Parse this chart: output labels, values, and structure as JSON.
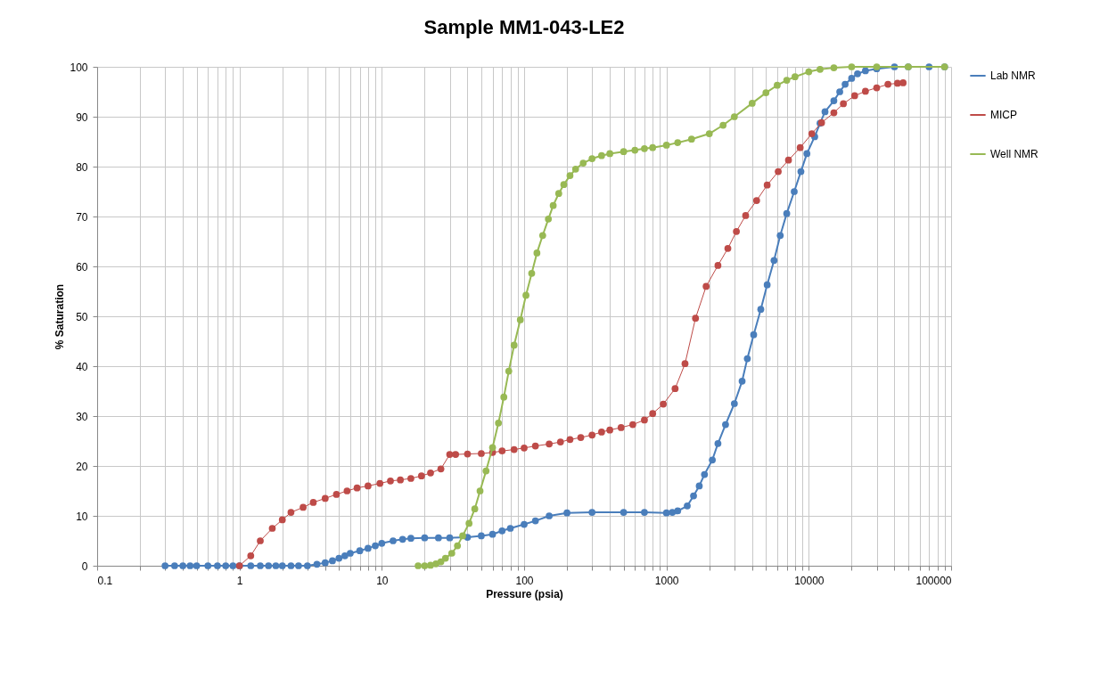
{
  "chart_data": {
    "type": "line",
    "title": "Sample MM1-043-LE2",
    "xlabel": "Pressure (psia)",
    "ylabel": "% Saturation",
    "log": "x",
    "grid": true,
    "legend": "right",
    "marker": "circle",
    "line_style": "solid",
    "xlim": [
      0.1,
      100000
    ],
    "ylim": [
      0,
      100
    ],
    "xticks": [
      0.1,
      {
        "value": 0.2,
        "label": null
      },
      {
        "value": 0.3,
        "label": null
      },
      {
        "value": 0.4,
        "label": null
      },
      {
        "value": 0.5,
        "label": null
      },
      {
        "value": 0.6,
        "label": null
      },
      {
        "value": 0.7,
        "label": null
      },
      {
        "value": 0.8,
        "label": null
      },
      {
        "value": 0.9,
        "label": null
      },
      1,
      {
        "value": 2,
        "label": null
      },
      {
        "value": 3,
        "label": null
      },
      {
        "value": 4,
        "label": null
      },
      {
        "value": 5,
        "label": null
      },
      {
        "value": 6,
        "label": null
      },
      {
        "value": 7,
        "label": null
      },
      {
        "value": 8,
        "label": null
      },
      {
        "value": 9,
        "label": null
      },
      10,
      {
        "value": 20,
        "label": null
      },
      {
        "value": 30,
        "label": null
      },
      {
        "value": 40,
        "label": null
      },
      {
        "value": 50,
        "label": null
      },
      {
        "value": 60,
        "label": null
      },
      {
        "value": 70,
        "label": null
      },
      {
        "value": 80,
        "label": null
      },
      {
        "value": 90,
        "label": null
      },
      100,
      {
        "value": 200,
        "label": null
      },
      {
        "value": 300,
        "label": null
      },
      {
        "value": 400,
        "label": null
      },
      {
        "value": 500,
        "label": null
      },
      {
        "value": 600,
        "label": null
      },
      {
        "value": 700,
        "label": null
      },
      {
        "value": 800,
        "label": null
      },
      {
        "value": 900,
        "label": null
      },
      1000,
      {
        "value": 2000,
        "label": null
      },
      {
        "value": 3000,
        "label": null
      },
      {
        "value": 4000,
        "label": null
      },
      {
        "value": 5000,
        "label": null
      },
      {
        "value": 6000,
        "label": null
      },
      {
        "value": 7000,
        "label": null
      },
      {
        "value": 8000,
        "label": null
      },
      {
        "value": 9000,
        "label": null
      },
      10000,
      {
        "value": 20000,
        "label": null
      },
      {
        "value": 30000,
        "label": null
      },
      {
        "value": 40000,
        "label": null
      },
      {
        "value": 50000,
        "label": null
      },
      {
        "value": 60000,
        "label": null
      },
      {
        "value": 70000,
        "label": null
      },
      {
        "value": 80000,
        "label": null
      },
      {
        "value": 90000,
        "label": null
      },
      100000
    ],
    "yticks": [
      0,
      10,
      20,
      30,
      40,
      50,
      60,
      70,
      80,
      90,
      100
    ],
    "series": [
      {
        "name": "Lab NMR",
        "color": "#4a7ebb",
        "x": [
          0.3,
          0.35,
          0.4,
          0.45,
          0.5,
          0.6,
          0.7,
          0.8,
          0.9,
          1,
          1.2,
          1.4,
          1.6,
          1.8,
          2,
          2.3,
          2.6,
          3,
          3.5,
          4,
          4.5,
          5,
          5.5,
          6,
          7,
          8,
          9,
          10,
          12,
          14,
          16,
          20,
          25,
          30,
          40,
          50,
          60,
          70,
          80,
          100,
          120,
          150,
          200,
          300,
          500,
          700,
          1000,
          1100,
          1200,
          1400,
          1550,
          1700,
          1850,
          2100,
          2300,
          2600,
          3000,
          3400,
          3700,
          4100,
          4600,
          5100,
          5700,
          6300,
          7000,
          7900,
          8800,
          9700,
          11000,
          12000,
          13000,
          15000,
          16500,
          18000,
          20000,
          22000,
          25000,
          30000,
          40000,
          50000,
          70000,
          90000
        ],
        "values": [
          0,
          0,
          0,
          0,
          0,
          0,
          0,
          0,
          0,
          0,
          0,
          0,
          0,
          0,
          0,
          0,
          0,
          0,
          0.3,
          0.6,
          1,
          1.5,
          2,
          2.5,
          3,
          3.5,
          4,
          4.5,
          5,
          5.3,
          5.5,
          5.6,
          5.6,
          5.6,
          5.7,
          6,
          6.3,
          7,
          7.5,
          8.3,
          9,
          10,
          10.6,
          10.7,
          10.7,
          10.7,
          10.6,
          10.7,
          11,
          12,
          14,
          16,
          18.3,
          21.2,
          24.5,
          28.3,
          32.5,
          37,
          41.5,
          46.3,
          51.4,
          56.3,
          61.2,
          66.2,
          70.6,
          75,
          79,
          82.6,
          86,
          88.7,
          91,
          93.2,
          95,
          96.5,
          97.7,
          98.6,
          99.2,
          99.6,
          100,
          100,
          100,
          100
        ]
      },
      {
        "name": "MICP",
        "color": "#be4b48",
        "x": [
          1,
          1.2,
          1.4,
          1.7,
          2,
          2.3,
          2.8,
          3.3,
          4,
          4.8,
          5.7,
          6.7,
          8,
          9.7,
          11.5,
          13.5,
          16,
          19,
          22,
          26,
          30,
          33,
          40,
          50,
          60,
          70,
          85,
          100,
          120,
          150,
          180,
          210,
          250,
          300,
          350,
          400,
          480,
          580,
          700,
          800,
          950,
          1150,
          1350,
          1600,
          1900,
          2300,
          2700,
          3100,
          3600,
          4300,
          5100,
          6100,
          7200,
          8700,
          10500,
          12300,
          15000,
          17500,
          21000,
          25000,
          30000,
          36000,
          42000,
          46000
        ],
        "values": [
          0,
          2,
          5,
          7.5,
          9.2,
          10.7,
          11.7,
          12.7,
          13.5,
          14.3,
          15,
          15.6,
          16,
          16.5,
          17,
          17.2,
          17.5,
          18,
          18.6,
          19.4,
          22.3,
          22.3,
          22.4,
          22.5,
          22.7,
          23,
          23.3,
          23.6,
          24,
          24.4,
          24.8,
          25.3,
          25.7,
          26.2,
          26.8,
          27.2,
          27.7,
          28.3,
          29.2,
          30.5,
          32.4,
          35.5,
          40.5,
          49.6,
          56,
          60.2,
          63.6,
          67,
          70.2,
          73.2,
          76.3,
          79,
          81.3,
          83.8,
          86.6,
          88.8,
          90.8,
          92.6,
          94.2,
          95.1,
          95.8,
          96.5,
          96.7,
          96.8
        ]
      },
      {
        "name": "Well NMR",
        "color": "#98b954",
        "x": [
          18,
          20,
          22,
          24,
          26,
          28,
          31,
          34,
          37,
          41,
          45,
          49,
          54,
          60,
          66,
          72,
          78,
          85,
          94,
          103,
          113,
          123,
          135,
          148,
          160,
          175,
          190,
          210,
          230,
          260,
          300,
          350,
          400,
          500,
          600,
          700,
          800,
          1000,
          1200,
          1500,
          2000,
          2500,
          3000,
          4000,
          5000,
          6000,
          7000,
          8000,
          10000,
          12000,
          15000,
          20000,
          30000,
          50000,
          90000
        ],
        "values": [
          0,
          0,
          0.1,
          0.4,
          0.8,
          1.5,
          2.5,
          4,
          6,
          8.5,
          11.4,
          15,
          19,
          23.7,
          28.6,
          33.8,
          39,
          44.2,
          49.3,
          54.2,
          58.6,
          62.7,
          66.2,
          69.5,
          72.2,
          74.6,
          76.4,
          78.2,
          79.5,
          80.7,
          81.6,
          82.2,
          82.6,
          83,
          83.3,
          83.6,
          83.8,
          84.3,
          84.8,
          85.5,
          86.6,
          88.3,
          90,
          92.7,
          94.8,
          96.3,
          97.3,
          98,
          99,
          99.5,
          99.8,
          100,
          100,
          100,
          100
        ]
      }
    ]
  }
}
